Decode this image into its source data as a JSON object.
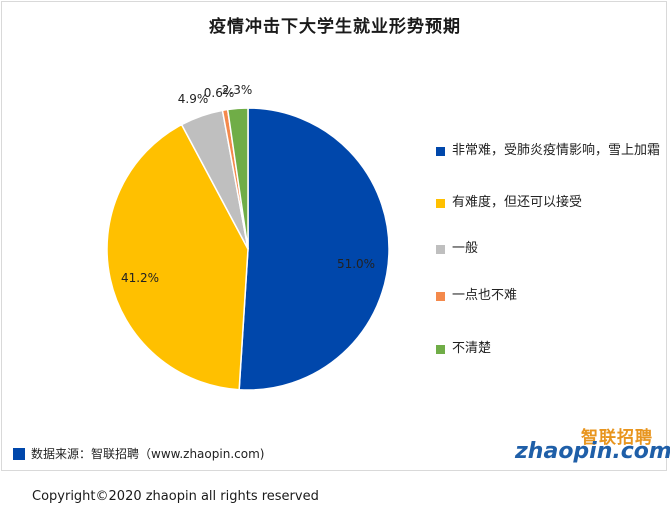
{
  "title": "疫情冲击下大学生就业形势预期",
  "chart_data": {
    "type": "pie",
    "title": "疫情冲击下大学生就业形势预期",
    "legend_position": "right",
    "slices": [
      {
        "label": "非常难，受肺炎疫情影响，雪上加霜",
        "value": 51.0,
        "value_label": "51.0%",
        "color": "#0047AB"
      },
      {
        "label": "有难度，但还可以接受",
        "value": 41.2,
        "value_label": "41.2%",
        "color": "#FFC000"
      },
      {
        "label": "一般",
        "value": 4.9,
        "value_label": "4.9%",
        "color": "#BFBFBF"
      },
      {
        "label": "一点也不难",
        "value": 0.6,
        "value_label": "0.6%",
        "color": "#F4894B"
      },
      {
        "label": "不清楚",
        "value": 2.3,
        "value_label": "2.3%",
        "color": "#70AD47"
      }
    ]
  },
  "source": {
    "text": "数据来源：智联招聘（www.zhaopin.com)",
    "mark_color": "#0047AB"
  },
  "logo": {
    "cn": "智联招聘",
    "en": "zhaopin.com"
  },
  "copyright": "Copyright©2020 zhaopin all rights reserved"
}
